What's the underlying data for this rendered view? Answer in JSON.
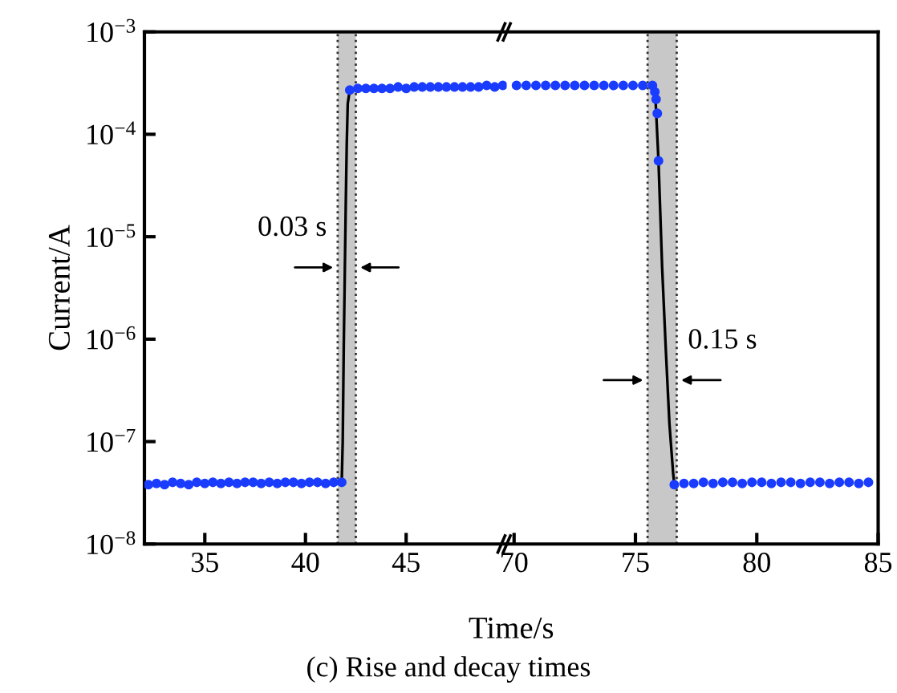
{
  "chart_data": [
    {
      "type": "scatter",
      "xlabel": "Time/s",
      "ylabel": "Current/A",
      "log": "y",
      "grid": false,
      "xlim": [
        32,
        50
      ],
      "xticks": [
        35,
        40,
        45
      ],
      "ylim": [
        1e-08,
        0.001
      ],
      "yticks": [
        {
          "value": 1e-08,
          "label": "10$^{−8}$"
        },
        {
          "value": 1e-07,
          "label": "10$^{−7}$"
        },
        {
          "value": 1e-06,
          "label": "10$^{−6}$"
        },
        {
          "value": 1e-05,
          "label": "10$^{−5}$"
        },
        {
          "value": 0.0001,
          "label": "10$^{−4}$"
        },
        {
          "value": 0.001,
          "label": "10$^{−3}$"
        }
      ],
      "series": [
        {
          "color": "#1a3cff",
          "marker": "circle",
          "x": [
            32.2,
            32.6,
            33.0,
            33.4,
            33.8,
            34.2,
            34.6,
            35.0,
            35.4,
            35.8,
            36.2,
            36.6,
            37.0,
            37.4,
            37.8,
            38.2,
            38.6,
            39.0,
            39.4,
            39.8,
            40.2,
            40.6,
            41.0,
            41.4,
            41.8
          ],
          "values": [
            3.8e-08,
            3.9e-08,
            3.8e-08,
            4e-08,
            3.9e-08,
            3.8e-08,
            4e-08,
            3.9e-08,
            4e-08,
            3.9e-08,
            4e-08,
            3.9e-08,
            4e-08,
            4e-08,
            3.9e-08,
            4e-08,
            3.9e-08,
            4e-08,
            4e-08,
            3.9e-08,
            4e-08,
            4e-08,
            3.9e-08,
            4e-08,
            4e-08
          ]
        },
        {
          "type": "line",
          "color": "#000000",
          "marker": "none",
          "x": [
            41.8,
            41.85,
            41.9,
            41.95,
            42.0,
            42.05,
            42.1,
            42.2
          ],
          "values": [
            4e-08,
            1e-07,
            8e-07,
            4e-06,
            2e-05,
            8e-05,
            0.0002,
            0.00027
          ]
        },
        {
          "color": "#1a3cff",
          "marker": "circle",
          "x": [
            42.2,
            42.6,
            43.0,
            43.4,
            43.8,
            44.2,
            44.6,
            45.0,
            45.4,
            45.8,
            46.2,
            46.6,
            47.0,
            47.4,
            47.8,
            48.2,
            48.6,
            49.0,
            49.4,
            49.8
          ],
          "values": [
            0.00027,
            0.00028,
            0.00028,
            0.00028,
            0.00028,
            0.00028,
            0.00029,
            0.00028,
            0.00029,
            0.00029,
            0.00029,
            0.00029,
            0.00029,
            0.00029,
            0.00029,
            0.00029,
            0.00029,
            0.0003,
            0.00029,
            0.0003
          ]
        }
      ],
      "bands": [
        {
          "axis": "x",
          "from": 41.6,
          "to": 42.5,
          "color": "#c8c8c8"
        }
      ],
      "ref_lines": [
        {
          "axis": "x",
          "value": 41.6,
          "color": "#333333",
          "line_style": "dotted"
        },
        {
          "axis": "x",
          "value": 42.5,
          "color": "#333333",
          "line_style": "dotted"
        }
      ],
      "annotations": [
        "0.03 s",
        "(c) Rise and decay times"
      ]
    },
    {
      "type": "scatter",
      "log": "y",
      "grid": false,
      "tick_labels": "x",
      "xlim": [
        69.7,
        85
      ],
      "xticks": [
        70,
        75,
        80,
        85
      ],
      "ylim": [
        1e-08,
        0.001
      ],
      "yticks": [
        {
          "value": 1e-08,
          "label": null
        },
        {
          "value": 1e-07,
          "label": null
        },
        {
          "value": 1e-06,
          "label": null
        },
        {
          "value": 1e-05,
          "label": null
        },
        {
          "value": 0.0001,
          "label": null
        },
        {
          "value": 0.001,
          "label": null
        }
      ],
      "series": [
        {
          "color": "#1a3cff",
          "marker": "circle",
          "x": [
            70.1,
            70.5,
            70.9,
            71.3,
            71.7,
            72.1,
            72.5,
            72.9,
            73.3,
            73.7,
            74.1,
            74.5,
            74.9,
            75.3,
            75.7,
            75.8,
            75.85,
            75.9,
            75.95
          ],
          "values": [
            0.0003,
            0.0003,
            0.0003,
            0.0003,
            0.0003,
            0.0003,
            0.0003,
            0.0003,
            0.0003,
            0.0003,
            0.0003,
            0.0003,
            0.0003,
            0.0003,
            0.0003,
            0.00026,
            0.00022,
            0.00016,
            5.5e-05
          ]
        },
        {
          "type": "line",
          "color": "#000000",
          "marker": "none",
          "x": [
            75.8,
            75.95,
            76.1,
            76.25,
            76.4,
            76.55,
            76.6
          ],
          "values": [
            0.0003,
            5.5e-05,
            5e-06,
            8e-07,
            1.5e-07,
            5e-08,
            3.8e-08
          ]
        },
        {
          "color": "#1a3cff",
          "marker": "circle",
          "x": [
            76.6,
            77.0,
            77.4,
            77.8,
            78.2,
            78.6,
            79.0,
            79.4,
            79.8,
            80.2,
            80.6,
            81.0,
            81.4,
            81.8,
            82.2,
            82.6,
            83.0,
            83.4,
            83.8,
            84.2,
            84.6
          ],
          "values": [
            3.8e-08,
            3.9e-08,
            3.9e-08,
            4e-08,
            3.9e-08,
            4e-08,
            4e-08,
            3.9e-08,
            4e-08,
            4e-08,
            3.9e-08,
            4e-08,
            4e-08,
            3.9e-08,
            4e-08,
            4e-08,
            3.9e-08,
            4e-08,
            4e-08,
            3.9e-08,
            4e-08
          ]
        }
      ],
      "bands": [
        {
          "axis": "x",
          "from": 75.5,
          "to": 76.7,
          "color": "#c8c8c8"
        }
      ],
      "ref_lines": [
        {
          "axis": "x",
          "value": 75.5,
          "color": "#333333",
          "line_style": "dotted"
        },
        {
          "axis": "x",
          "value": 76.7,
          "color": "#333333",
          "line_style": "dotted"
        }
      ],
      "annotations": [
        "0.15 s"
      ]
    }
  ]
}
